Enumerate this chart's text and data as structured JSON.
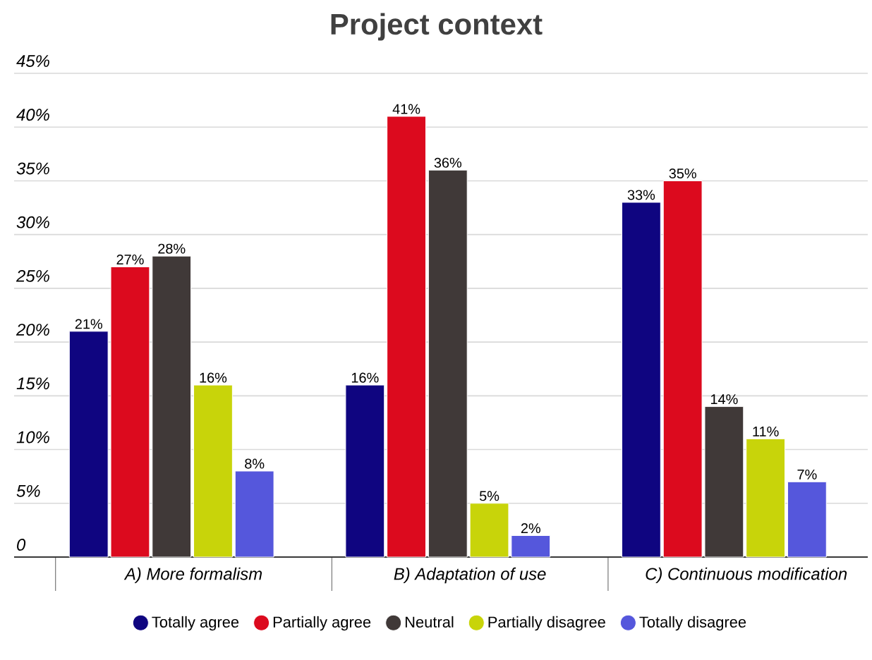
{
  "chart_data": {
    "type": "bar",
    "title": "Project context",
    "categories": [
      "A) More formalism",
      "B) Adaptation of use",
      "C) Continuous modification"
    ],
    "series": [
      {
        "name": "Totally agree",
        "color": "#0f0580",
        "values": [
          21,
          16,
          33
        ],
        "value_labels": [
          "21%",
          "16%",
          "33%"
        ]
      },
      {
        "name": "Partially agree",
        "color": "#dc0a1e",
        "values": [
          27,
          41,
          35
        ],
        "value_labels": [
          "27%",
          "41%",
          "35%"
        ]
      },
      {
        "name": "Neutral",
        "color": "#403938",
        "values": [
          28,
          36,
          14
        ],
        "value_labels": [
          "28%",
          "36%",
          "14%"
        ]
      },
      {
        "name": "Partially disagree",
        "color": "#c8d40a",
        "values": [
          16,
          5,
          11
        ],
        "value_labels": [
          "16%",
          "5%",
          "11%"
        ]
      },
      {
        "name": "Totally disagree",
        "color": "#5557dc",
        "values": [
          8,
          2,
          7
        ],
        "value_labels": [
          "8%",
          "2%",
          "7%"
        ]
      }
    ],
    "ylim": [
      0,
      45
    ],
    "yticks": [
      0,
      {
        "value": 5,
        "label": "5%"
      },
      {
        "value": 10,
        "label": "10%"
      },
      {
        "value": 15,
        "label": "15%"
      },
      {
        "value": 20,
        "label": "20%"
      },
      {
        "value": 25,
        "label": "25%"
      },
      {
        "value": 30,
        "label": "30%"
      },
      {
        "value": 35,
        "label": "35%"
      },
      {
        "value": 40,
        "label": "40%"
      },
      {
        "value": 45,
        "label": "45%"
      }
    ],
    "grid": "y",
    "legend": "bottom"
  }
}
